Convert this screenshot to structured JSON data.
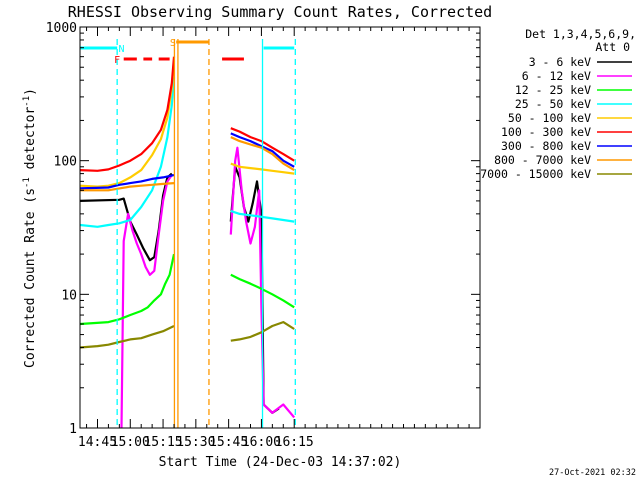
{
  "chart_data": {
    "type": "line",
    "title": "RHESSI Observing Summary Count Rates, Corrected",
    "xlabel": "Start Time (24-Dec-03 14:37:02)",
    "ylabel_main": "Corrected Count Rate (s",
    "ylabel_sup": "-1",
    "ylabel_tail": " detector",
    "ylabel_close": ")",
    "footer": "27-Oct-2021 02:32",
    "xlim_min": [
      37,
      220
    ],
    "ylim": [
      1,
      1000
    ],
    "yscale": "log",
    "x_ticks": [
      {
        "min": 45,
        "label": "14:45"
      },
      {
        "min": 60,
        "label": "15:00"
      },
      {
        "min": 75,
        "label": "15:15"
      },
      {
        "min": 90,
        "label": "15:30"
      },
      {
        "min": 105,
        "label": "15:45"
      },
      {
        "min": 120,
        "label": "16:00"
      },
      {
        "min": 135,
        "label": "16:15"
      }
    ],
    "y_ticks": [
      {
        "value": 1,
        "label": "1"
      },
      {
        "value": 10,
        "label": "10"
      },
      {
        "value": 100,
        "label": "100"
      },
      {
        "value": 1000,
        "label": "1000"
      }
    ],
    "legend": {
      "header_line1": "Det 1,3,4,5,6,9,",
      "header_line2": "Att 0",
      "position": "right"
    },
    "series": [
      {
        "name": "3 - 6 keV",
        "color": "#000000",
        "segments": [
          [
            [
              37,
              50
            ],
            [
              55,
              51
            ],
            [
              57,
              52
            ],
            [
              60,
              35
            ],
            [
              63,
              28
            ],
            [
              66,
              22
            ],
            [
              69,
              18
            ],
            [
              71,
              19
            ],
            [
              73,
              30
            ],
            [
              75,
              55
            ],
            [
              77,
              75
            ],
            [
              79,
              80
            ]
          ],
          [
            [
              106,
              35
            ],
            [
              108,
              90
            ],
            [
              110,
              75
            ],
            [
              112,
              45
            ],
            [
              114,
              35
            ],
            [
              116,
              48
            ],
            [
              118,
              70
            ],
            [
              120,
              40
            ],
            [
              121,
              1.5
            ],
            [
              125,
              1.3
            ],
            [
              128,
              1.4
            ]
          ]
        ]
      },
      {
        "name": "6 - 12 keV",
        "color": "#ff00ff",
        "segments": [
          [
            [
              56,
              1
            ],
            [
              57,
              25
            ],
            [
              59,
              40
            ],
            [
              61,
              30
            ],
            [
              63,
              24
            ],
            [
              65,
              20
            ],
            [
              67,
              16
            ],
            [
              69,
              14
            ],
            [
              71,
              15
            ],
            [
              73,
              28
            ],
            [
              75,
              50
            ],
            [
              77,
              70
            ],
            [
              79,
              78
            ]
          ],
          [
            [
              106,
              28
            ],
            [
              108,
              100
            ],
            [
              109,
              125
            ],
            [
              111,
              60
            ],
            [
              113,
              35
            ],
            [
              115,
              24
            ],
            [
              117,
              32
            ],
            [
              119,
              60
            ],
            [
              120,
              8
            ],
            [
              121,
              1.5
            ],
            [
              125,
              1.3
            ],
            [
              130,
              1.5
            ],
            [
              135,
              1.2
            ]
          ]
        ]
      },
      {
        "name": "12 - 25 keV",
        "color": "#00ff00",
        "segments": [
          [
            [
              37,
              6
            ],
            [
              50,
              6.2
            ],
            [
              55,
              6.5
            ],
            [
              60,
              7
            ],
            [
              65,
              7.5
            ],
            [
              68,
              8
            ],
            [
              71,
              9
            ],
            [
              74,
              10
            ],
            [
              76,
              12
            ],
            [
              78,
              14
            ],
            [
              80,
              20
            ]
          ],
          [
            [
              106,
              14
            ],
            [
              110,
              13
            ],
            [
              115,
              12
            ],
            [
              120,
              11
            ],
            [
              125,
              10
            ],
            [
              130,
              9
            ],
            [
              135,
              8
            ]
          ]
        ]
      },
      {
        "name": "25 - 50 keV",
        "color": "#00ffff",
        "segments": [
          [
            [
              37,
              33
            ],
            [
              45,
              32
            ],
            [
              50,
              33
            ],
            [
              55,
              34
            ],
            [
              60,
              36
            ],
            [
              65,
              45
            ],
            [
              70,
              60
            ],
            [
              74,
              90
            ],
            [
              77,
              150
            ],
            [
              79,
              260
            ],
            [
              80,
              420
            ]
          ],
          [
            [
              106,
              42
            ],
            [
              110,
              40
            ],
            [
              115,
              39
            ],
            [
              120,
              38
            ],
            [
              125,
              37
            ],
            [
              130,
              36
            ],
            [
              135,
              35
            ]
          ]
        ]
      },
      {
        "name": "50 - 100 keV",
        "color": "#ffcc00",
        "segments": [
          [
            [
              37,
              65
            ],
            [
              45,
              64
            ],
            [
              50,
              65
            ],
            [
              55,
              68
            ],
            [
              60,
              75
            ],
            [
              65,
              85
            ],
            [
              70,
              110
            ],
            [
              74,
              145
            ],
            [
              77,
              210
            ],
            [
              79,
              350
            ],
            [
              80,
              560
            ]
          ],
          [
            [
              106,
              95
            ],
            [
              110,
              90
            ],
            [
              115,
              88
            ],
            [
              120,
              86
            ],
            [
              125,
              84
            ],
            [
              130,
              82
            ],
            [
              135,
              80
            ]
          ]
        ]
      },
      {
        "name": "100 - 300 keV",
        "color": "#ff0000",
        "segments": [
          [
            [
              37,
              85
            ],
            [
              45,
              84
            ],
            [
              50,
              86
            ],
            [
              55,
              92
            ],
            [
              60,
              100
            ],
            [
              65,
              112
            ],
            [
              70,
              135
            ],
            [
              74,
              170
            ],
            [
              77,
              240
            ],
            [
              79,
              380
            ],
            [
              80,
              600
            ]
          ],
          [
            [
              106,
              175
            ],
            [
              110,
              165
            ],
            [
              115,
              150
            ],
            [
              120,
              140
            ],
            [
              125,
              125
            ],
            [
              130,
              112
            ],
            [
              135,
              100
            ]
          ]
        ]
      },
      {
        "name": "300 - 800 keV",
        "color": "#0000ff",
        "segments": [
          [
            [
              37,
              62
            ],
            [
              50,
              63
            ],
            [
              55,
              66
            ],
            [
              60,
              68
            ],
            [
              65,
              70
            ],
            [
              70,
              73
            ],
            [
              75,
              75
            ],
            [
              80,
              78
            ]
          ],
          [
            [
              106,
              160
            ],
            [
              110,
              150
            ],
            [
              115,
              140
            ],
            [
              120,
              128
            ],
            [
              125,
              118
            ],
            [
              130,
              100
            ],
            [
              135,
              90
            ]
          ]
        ]
      },
      {
        "name": "800 - 7000 keV",
        "color": "#ff9900",
        "segments": [
          [
            [
              37,
              60
            ],
            [
              50,
              60
            ],
            [
              55,
              62
            ],
            [
              60,
              64
            ],
            [
              65,
              65
            ],
            [
              70,
              66
            ],
            [
              75,
              67
            ],
            [
              80,
              68
            ]
          ],
          [
            [
              106,
              150
            ],
            [
              110,
              140
            ],
            [
              115,
              132
            ],
            [
              120,
              125
            ],
            [
              125,
              112
            ],
            [
              130,
              95
            ],
            [
              135,
              85
            ]
          ]
        ]
      },
      {
        "name": "7000 - 15000 keV",
        "color": "#888800",
        "segments": [
          [
            [
              37,
              4
            ],
            [
              45,
              4.1
            ],
            [
              50,
              4.2
            ],
            [
              55,
              4.4
            ],
            [
              60,
              4.6
            ],
            [
              65,
              4.7
            ],
            [
              70,
              5
            ],
            [
              75,
              5.3
            ],
            [
              80,
              5.8
            ]
          ],
          [
            [
              106,
              4.5
            ],
            [
              110,
              4.6
            ],
            [
              115,
              4.8
            ],
            [
              120,
              5.2
            ],
            [
              125,
              5.8
            ],
            [
              130,
              6.2
            ],
            [
              135,
              5.5
            ]
          ]
        ]
      }
    ],
    "flag_rows": [
      {
        "label": "N",
        "color": "#00ffff",
        "label_min": 56,
        "bars": [
          [
            37,
            54
          ],
          [
            121,
            135
          ]
        ]
      },
      {
        "label": "F",
        "color": "#ff0000",
        "label_min": 54,
        "bars": [
          [
            57,
            63
          ],
          [
            66,
            70
          ],
          [
            73,
            78
          ],
          [
            102,
            112
          ]
        ]
      },
      {
        "label": "S",
        "color": "#ff9900",
        "label_min": 79.5,
        "bars": [
          [
            81,
            96
          ]
        ]
      }
    ],
    "markers": [
      {
        "min": 54,
        "color": "#00ffff",
        "style": "dashed"
      },
      {
        "min": 80.2,
        "color": "#ff9900",
        "style": "solid"
      },
      {
        "min": 81.8,
        "color": "#ff9900",
        "style": "solid"
      },
      {
        "min": 96,
        "color": "#ff9900",
        "style": "dashed"
      },
      {
        "min": 120.5,
        "color": "#00ffff",
        "style": "solid"
      },
      {
        "min": 135.5,
        "color": "#00ffff",
        "style": "dashed"
      }
    ]
  }
}
